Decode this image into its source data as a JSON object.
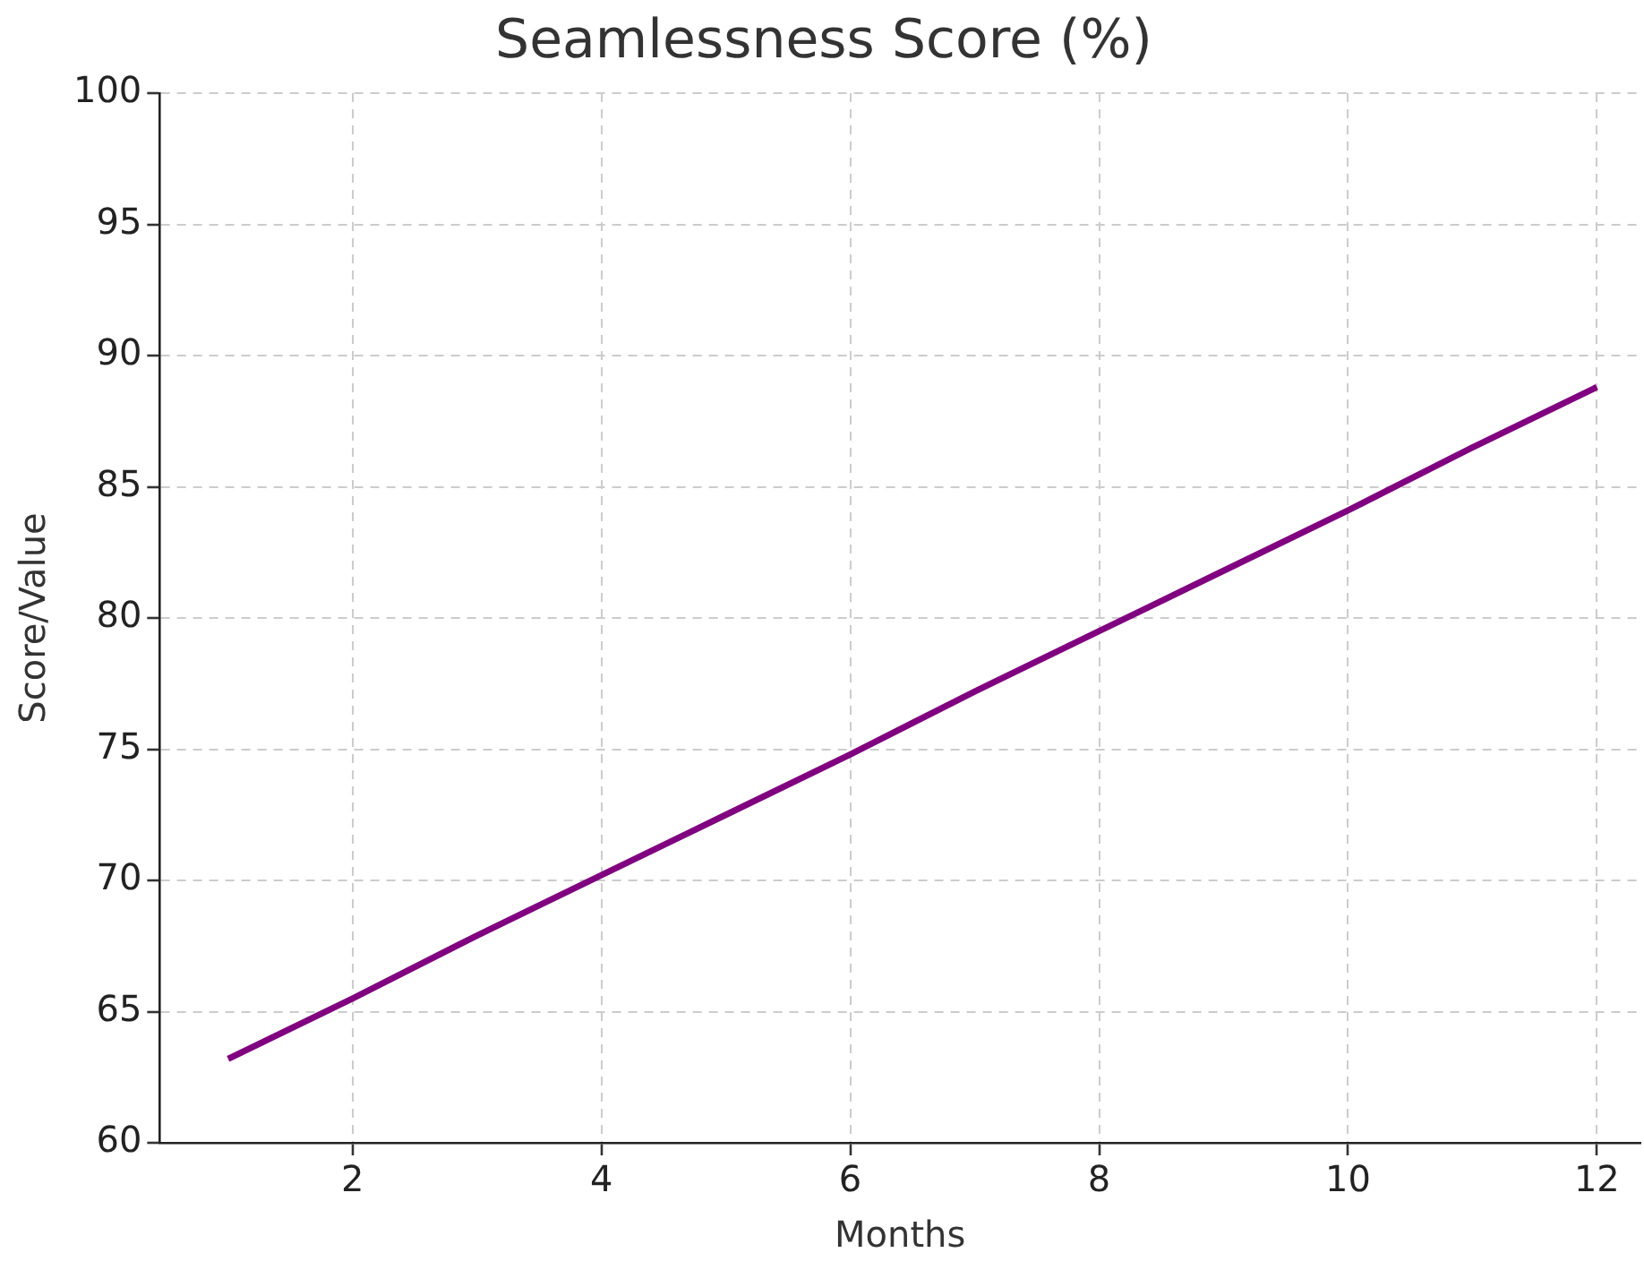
{
  "chart_data": {
    "type": "line",
    "title": "Seamlessness Score (%)",
    "xlabel": "Months",
    "ylabel": "Score/Value",
    "x": [
      1,
      2,
      3,
      4,
      5,
      6,
      7,
      8,
      9,
      10,
      11,
      12
    ],
    "series": [
      {
        "color": "#800080",
        "values": [
          63.2,
          65.5,
          67.9,
          70.2,
          72.5,
          74.8,
          77.2,
          79.5,
          81.8,
          84.1,
          86.5,
          88.8
        ]
      }
    ],
    "xlim": [
      0.45,
      12.35
    ],
    "xticks": [
      2,
      4,
      6,
      8,
      10,
      12
    ],
    "ylim": [
      60,
      100
    ],
    "yticks": [
      60,
      65,
      70,
      75,
      80,
      85,
      90,
      95,
      100
    ],
    "grid": true,
    "legend": false,
    "marker": "none",
    "line_style": "solid"
  }
}
